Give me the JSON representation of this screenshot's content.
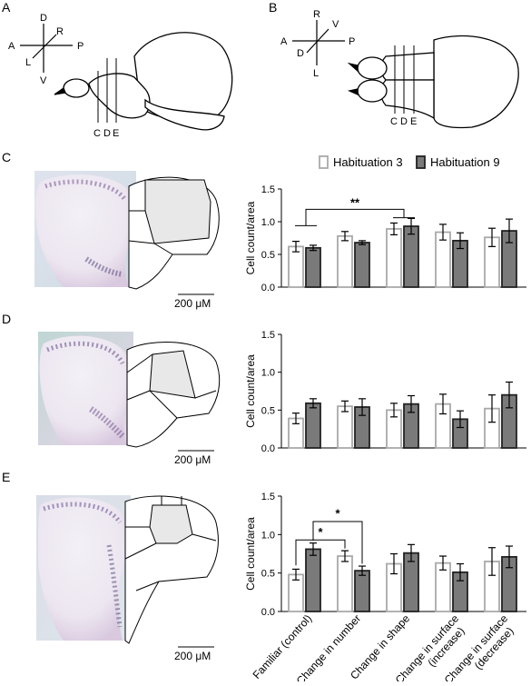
{
  "panels": {
    "A": "A",
    "B": "B",
    "C": "C",
    "D": "D",
    "E": "E"
  },
  "compass_A": {
    "d": "D",
    "v": "V",
    "a": "A",
    "p": "P",
    "r": "R",
    "l": "L"
  },
  "compass_B": {
    "r": "R",
    "l": "L",
    "a": "A",
    "p": "P",
    "v": "V",
    "d": "D"
  },
  "section_labels": [
    "C",
    "D",
    "E"
  ],
  "scale_bar": "200 μM",
  "legend": {
    "habituation3": "Habituation 3",
    "habituation9": "Habituation 9"
  },
  "colors": {
    "habituation3": "#ffffff",
    "habituation9": "#7a7a7a",
    "h3_stroke": "#a9a9a9",
    "h9_stroke": "#222222"
  },
  "chart_data": [
    {
      "type": "bar",
      "panel": "C",
      "categories": [
        "Familiar (control)",
        "Change in number",
        "Change in shape",
        "Change in surface (increase)",
        "Change in surface (decrease)"
      ],
      "series": [
        {
          "name": "Habituation 3",
          "values": [
            0.62,
            0.78,
            0.89,
            0.84,
            0.76
          ],
          "errors": [
            0.08,
            0.07,
            0.09,
            0.12,
            0.14
          ]
        },
        {
          "name": "Habituation 9",
          "values": [
            0.6,
            0.68,
            0.93,
            0.71,
            0.86
          ],
          "errors": [
            0.04,
            0.03,
            0.12,
            0.12,
            0.18
          ]
        }
      ],
      "ylabel": "Cell count/area",
      "ylim": [
        0,
        1.5
      ],
      "yticks": [
        "0.0",
        "0.5",
        "1.0",
        "1.5"
      ],
      "significance": [
        {
          "from": 0,
          "to": 2,
          "label": "**"
        }
      ]
    },
    {
      "type": "bar",
      "panel": "D",
      "categories": [
        "Familiar (control)",
        "Change in number",
        "Change in shape",
        "Change in surface (increase)",
        "Change in surface (decrease)"
      ],
      "series": [
        {
          "name": "Habituation 3",
          "values": [
            0.39,
            0.55,
            0.5,
            0.58,
            0.52
          ],
          "errors": [
            0.07,
            0.07,
            0.09,
            0.13,
            0.18
          ]
        },
        {
          "name": "Habituation 9",
          "values": [
            0.59,
            0.54,
            0.58,
            0.38,
            0.7
          ],
          "errors": [
            0.06,
            0.11,
            0.11,
            0.11,
            0.17
          ]
        }
      ],
      "ylabel": "Cell count/area",
      "ylim": [
        0,
        1.5
      ],
      "yticks": [
        "0.0",
        "0.5",
        "1.0",
        "1.5"
      ],
      "significance": []
    },
    {
      "type": "bar",
      "panel": "E",
      "categories": [
        "Familiar (control)",
        "Change in number",
        "Change in shape",
        "Change in surface (increase)",
        "Change in surface (decrease)"
      ],
      "series": [
        {
          "name": "Habituation 3",
          "values": [
            0.48,
            0.72,
            0.62,
            0.63,
            0.65
          ],
          "errors": [
            0.07,
            0.07,
            0.13,
            0.09,
            0.18
          ]
        },
        {
          "name": "Habituation 9",
          "values": [
            0.81,
            0.53,
            0.76,
            0.51,
            0.71
          ],
          "errors": [
            0.08,
            0.06,
            0.11,
            0.11,
            0.14
          ]
        }
      ],
      "ylabel": "Cell count/area",
      "ylim": [
        0,
        1.5
      ],
      "yticks": [
        "0.0",
        "0.5",
        "1.0",
        "1.5"
      ],
      "xtick_labels": [
        "Familiar (control)",
        "Change in number",
        "Change in shape",
        "Change in surface",
        "(increase)",
        "Change in surface",
        "(decrease)"
      ],
      "significance": [
        {
          "from": 0,
          "to": 1,
          "label": "*"
        },
        {
          "from": 0,
          "to": 1,
          "label": "*"
        }
      ]
    }
  ]
}
